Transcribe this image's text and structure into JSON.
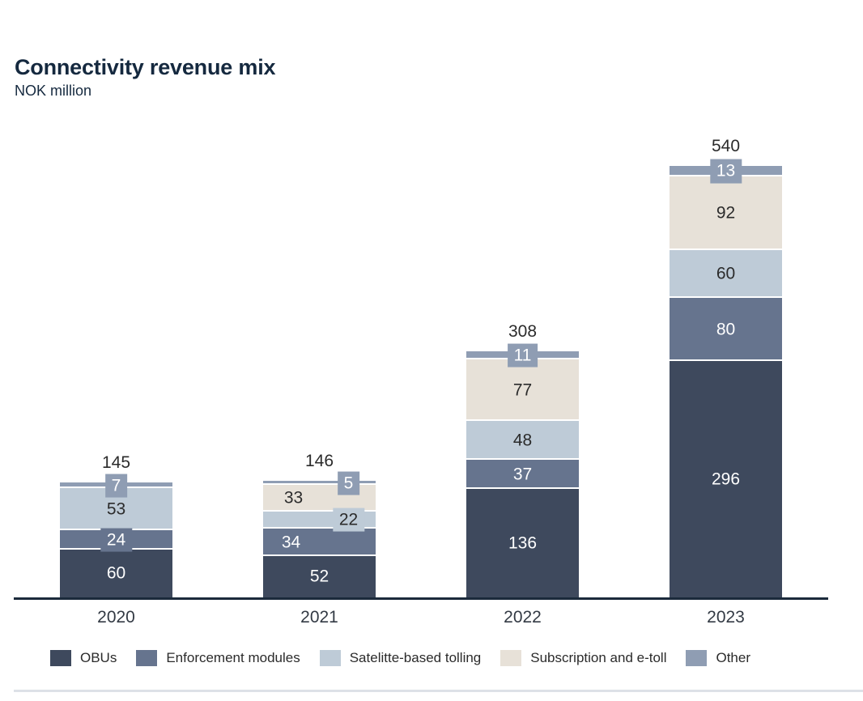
{
  "chart_data": {
    "type": "bar",
    "variant": "stacked",
    "title": "Connectivity revenue mix",
    "subtitle": "NOK million",
    "xlabel": "",
    "ylabel": "",
    "grid": false,
    "legend_position": "bottom",
    "axis_color": "#1B2A3B",
    "divider_color": "#DDE1E7",
    "background_color": "#FFFFFF",
    "label_color_light": "#FFFFFF",
    "label_color_dark": "#2B2B2B",
    "categories": [
      "2020",
      "2021",
      "2022",
      "2023"
    ],
    "totals": [
      "145",
      "146",
      "308",
      "540"
    ],
    "series": [
      {
        "name": "OBUs",
        "color": "#3E495D",
        "values": [
          60,
          52,
          136,
          296
        ]
      },
      {
        "name": "Enforcement modules",
        "color": "#66748E",
        "values": [
          24,
          34,
          37,
          80
        ]
      },
      {
        "name": "Satelitte-based tolling",
        "color": "#BECBD7",
        "values": [
          53,
          22,
          48,
          60
        ]
      },
      {
        "name": "Subscription and e-toll",
        "color": "#E7E1D8",
        "values": [
          0,
          33,
          77,
          92
        ]
      },
      {
        "name": "Other",
        "color": "#8F9DB3",
        "values": [
          7,
          5,
          11,
          13
        ]
      }
    ],
    "bars": [
      {
        "category": "2020",
        "total": "145",
        "segments": [
          {
            "series": 0,
            "value": 60,
            "label": "60",
            "style": "plain",
            "tone": "light",
            "dx": 0
          },
          {
            "series": 1,
            "value": 24,
            "label": "24",
            "style": "box",
            "tone": "light",
            "dx": 0
          },
          {
            "series": 2,
            "value": 53,
            "label": "53",
            "style": "plain",
            "tone": "dark",
            "dx": 0
          },
          {
            "series": 4,
            "value": 7,
            "label": "7",
            "style": "box",
            "tone": "light",
            "dx": 0
          }
        ]
      },
      {
        "category": "2021",
        "total": "146",
        "segments": [
          {
            "series": 0,
            "value": 52,
            "label": "52",
            "style": "plain",
            "tone": "light",
            "dx": 0
          },
          {
            "series": 1,
            "value": 34,
            "label": "34",
            "style": "plain",
            "tone": "light",
            "dx": -35
          },
          {
            "series": 2,
            "value": 22,
            "label": "22",
            "style": "box",
            "tone": "dark",
            "dx": 36
          },
          {
            "series": 3,
            "value": 33,
            "label": "33",
            "style": "plain",
            "tone": "dark",
            "dx": -32
          },
          {
            "series": 4,
            "value": 5,
            "label": "5",
            "style": "box",
            "tone": "light",
            "dx": 36
          }
        ]
      },
      {
        "category": "2022",
        "total": "308",
        "segments": [
          {
            "series": 0,
            "value": 136,
            "label": "136",
            "style": "plain",
            "tone": "light",
            "dx": 0
          },
          {
            "series": 1,
            "value": 37,
            "label": "37",
            "style": "plain",
            "tone": "light",
            "dx": 0
          },
          {
            "series": 2,
            "value": 48,
            "label": "48",
            "style": "plain",
            "tone": "dark",
            "dx": 0
          },
          {
            "series": 3,
            "value": 77,
            "label": "77",
            "style": "plain",
            "tone": "dark",
            "dx": 0
          },
          {
            "series": 4,
            "value": 11,
            "label": "11",
            "style": "box",
            "tone": "light",
            "dx": 0
          }
        ]
      },
      {
        "category": "2023",
        "total": "540",
        "segments": [
          {
            "series": 0,
            "value": 296,
            "label": "296",
            "style": "plain",
            "tone": "light",
            "dx": 0
          },
          {
            "series": 1,
            "value": 80,
            "label": "80",
            "style": "plain",
            "tone": "light",
            "dx": 0
          },
          {
            "series": 2,
            "value": 60,
            "label": "60",
            "style": "plain",
            "tone": "dark",
            "dx": 0
          },
          {
            "series": 3,
            "value": 92,
            "label": "92",
            "style": "plain",
            "tone": "dark",
            "dx": 0
          },
          {
            "series": 4,
            "value": 13,
            "label": "13",
            "style": "box",
            "tone": "light",
            "dx": 0
          }
        ]
      }
    ]
  }
}
